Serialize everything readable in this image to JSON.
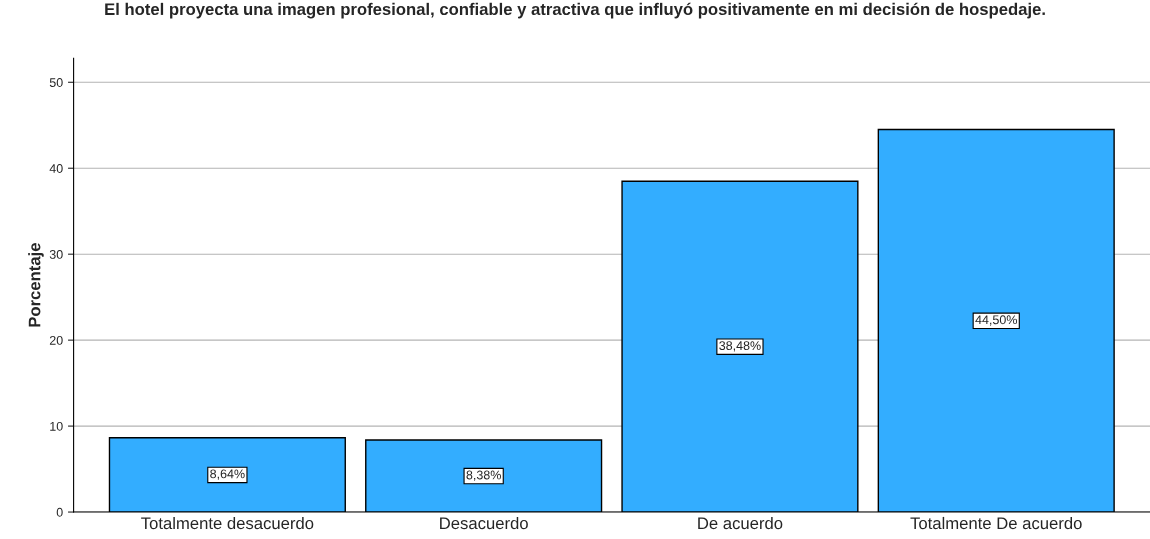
{
  "chart_data": {
    "type": "bar",
    "title": "El hotel proyecta una imagen profesional, confiable y atractiva que influyó positivamente en mi decisión de hospedaje.",
    "ylabel": "Porcentaje",
    "categories": [
      "Totalmente desacuerdo",
      "Desacuerdo",
      "De acuerdo",
      "Totalmente De acuerdo"
    ],
    "values": [
      8.64,
      8.38,
      38.48,
      44.5
    ],
    "value_labels": [
      "8,64%",
      "8,38%",
      "38,48%",
      "44,50%"
    ],
    "color": "#33adff",
    "ylim": [
      0,
      52.8
    ],
    "yticks": [
      0,
      10,
      20,
      30,
      40,
      50
    ],
    "grid": "y",
    "legend": false
  }
}
